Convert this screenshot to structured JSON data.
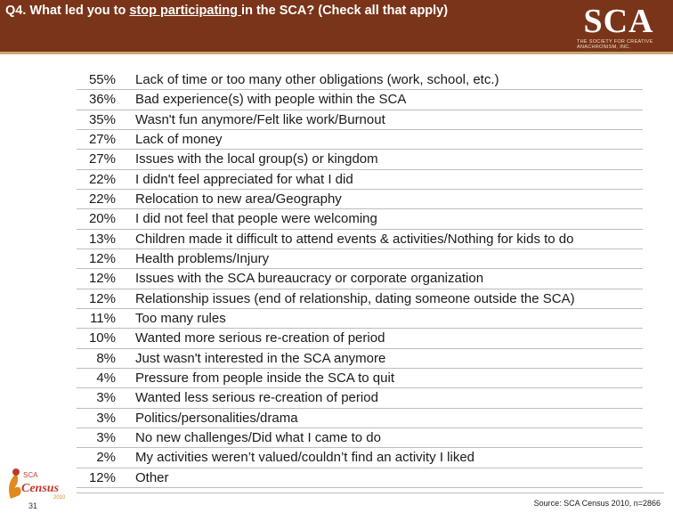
{
  "header": {
    "question_prefix": "Q4. What led you to ",
    "question_underlined": "stop participating ",
    "question_suffix": "in the SCA? (Check all that apply)",
    "logo_text": "SCA",
    "logo_sub": "THE SOCIETY FOR CREATIVE ANACHRONISM, INC.",
    "bg_color": "#7a3419"
  },
  "rows": [
    {
      "pct": "55%",
      "label": "Lack of time or too many other obligations (work, school, etc.)"
    },
    {
      "pct": "36%",
      "label": "Bad experience(s) with people within the SCA"
    },
    {
      "pct": "35%",
      "label": "Wasn't fun anymore/Felt like work/Burnout"
    },
    {
      "pct": "27%",
      "label": "Lack of money"
    },
    {
      "pct": "27%",
      "label": "Issues with the local group(s) or kingdom"
    },
    {
      "pct": "22%",
      "label": "I didn't feel appreciated for what I did"
    },
    {
      "pct": "22%",
      "label": "Relocation to new area/Geography"
    },
    {
      "pct": "20%",
      "label": "I did not feel that people were welcoming"
    },
    {
      "pct": "13%",
      "label": "Children made it difficult to attend events & activities/Nothing for kids to do"
    },
    {
      "pct": "12%",
      "label": "Health problems/Injury"
    },
    {
      "pct": "12%",
      "label": "Issues with the SCA bureaucracy or corporate organization"
    },
    {
      "pct": "12%",
      "label": "Relationship issues (end of relationship, dating someone outside the SCA)"
    },
    {
      "pct": "11%",
      "label": "Too many rules"
    },
    {
      "pct": "10%",
      "label": "Wanted more serious re-creation of period"
    },
    {
      "pct": "8%",
      "label": "Just wasn't interested in the SCA anymore"
    },
    {
      "pct": "4%",
      "label": "Pressure from people inside the SCA to quit"
    },
    {
      "pct": "3%",
      "label": "Wanted less serious re-creation of period"
    },
    {
      "pct": "3%",
      "label": "Politics/personalities/drama"
    },
    {
      "pct": "3%",
      "label": "No new challenges/Did what I came to do"
    },
    {
      "pct": "2%",
      "label": "My activities weren’t valued/couldn’t find an activity I liked"
    },
    {
      "pct": "12%",
      "label": "Other"
    }
  ],
  "footer": {
    "page_number": "31",
    "source": "Source: SCA Census 2010, n=2866",
    "census_logo_text": "Census",
    "census_logo_top": "SCA",
    "census_logo_year": "2010"
  }
}
